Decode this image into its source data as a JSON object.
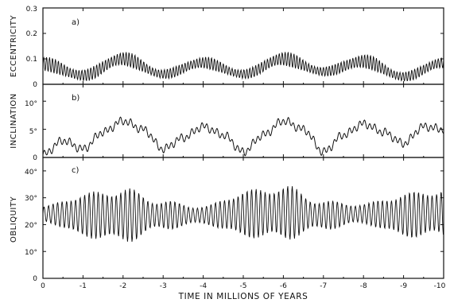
{
  "xlabel": "TIME IN MILLIONS OF YEARS",
  "x_ticks": [
    "0",
    "-1",
    "-2",
    "-3",
    "-4",
    "-5",
    "-6",
    "-7",
    "-8",
    "-9",
    "-10"
  ],
  "chart_data": [
    {
      "type": "line",
      "panel_label": "a)",
      "ylabel": "ECCENTRICITY",
      "y_ticks": [
        "0",
        "0.1",
        "0.2",
        "0.3"
      ],
      "xlim": [
        0,
        -10
      ],
      "ylim": [
        0,
        0.3
      ],
      "line_color": "#111111",
      "envelope_min": [
        {
          "x": 0,
          "y": 0.05
        },
        {
          "x": -1,
          "y": 0.01
        },
        {
          "x": -2,
          "y": 0.07
        },
        {
          "x": -3,
          "y": 0.02
        },
        {
          "x": -4,
          "y": 0.06
        },
        {
          "x": -5,
          "y": 0.02
        },
        {
          "x": -6,
          "y": 0.07
        },
        {
          "x": -7,
          "y": 0.03
        },
        {
          "x": -8,
          "y": 0.06
        },
        {
          "x": -9,
          "y": 0.01
        },
        {
          "x": -10,
          "y": 0.06
        }
      ],
      "envelope_max": [
        {
          "x": 0,
          "y": 0.11
        },
        {
          "x": -1,
          "y": 0.06
        },
        {
          "x": -2,
          "y": 0.13
        },
        {
          "x": -3,
          "y": 0.06
        },
        {
          "x": -4,
          "y": 0.11
        },
        {
          "x": -5,
          "y": 0.06
        },
        {
          "x": -6,
          "y": 0.13
        },
        {
          "x": -7,
          "y": 0.07
        },
        {
          "x": -8,
          "y": 0.12
        },
        {
          "x": -9,
          "y": 0.05
        },
        {
          "x": -10,
          "y": 0.11
        }
      ]
    },
    {
      "type": "line",
      "panel_label": "b)",
      "ylabel": "INCLINATION",
      "y_ticks": [
        "0",
        "5°",
        "10°"
      ],
      "xlim": [
        0,
        -10
      ],
      "ylim": [
        0,
        13
      ],
      "line_color": "#111111",
      "points": [
        {
          "x": 0,
          "y": 0.5
        },
        {
          "x": -0.5,
          "y": 3.0
        },
        {
          "x": -1,
          "y": 1.5
        },
        {
          "x": -1.5,
          "y": 4.5
        },
        {
          "x": -2,
          "y": 6.5
        },
        {
          "x": -2.5,
          "y": 5.0
        },
        {
          "x": -3,
          "y": 1.5
        },
        {
          "x": -3.5,
          "y": 3.5
        },
        {
          "x": -4,
          "y": 5.5
        },
        {
          "x": -4.5,
          "y": 4.0
        },
        {
          "x": -5,
          "y": 1.0
        },
        {
          "x": -5.5,
          "y": 4.0
        },
        {
          "x": -6,
          "y": 6.5
        },
        {
          "x": -6.5,
          "y": 5.0
        },
        {
          "x": -7,
          "y": 1.0
        },
        {
          "x": -7.5,
          "y": 4.0
        },
        {
          "x": -8,
          "y": 6.0
        },
        {
          "x": -8.5,
          "y": 4.5
        },
        {
          "x": -9,
          "y": 2.5
        },
        {
          "x": -9.5,
          "y": 5.5
        },
        {
          "x": -10,
          "y": 5.0
        }
      ]
    },
    {
      "type": "line",
      "panel_label": "c)",
      "ylabel": "OBLIQUITY",
      "y_ticks": [
        "0",
        "10°",
        "20°",
        "30°",
        "40°"
      ],
      "xlim": [
        0,
        -10
      ],
      "ylim": [
        0,
        45
      ],
      "line_color": "#111111",
      "envelope_min": [
        {
          "x": 0,
          "y": 21
        },
        {
          "x": -1,
          "y": 15
        },
        {
          "x": -2,
          "y": 13
        },
        {
          "x": -3,
          "y": 18
        },
        {
          "x": -4,
          "y": 20
        },
        {
          "x": -5,
          "y": 15
        },
        {
          "x": -6,
          "y": 14
        },
        {
          "x": -7,
          "y": 18
        },
        {
          "x": -8,
          "y": 20
        },
        {
          "x": -9,
          "y": 15
        },
        {
          "x": -10,
          "y": 15
        }
      ],
      "envelope_max": [
        {
          "x": 0,
          "y": 27
        },
        {
          "x": -1,
          "y": 32
        },
        {
          "x": -2,
          "y": 34
        },
        {
          "x": -3,
          "y": 29
        },
        {
          "x": -4,
          "y": 27
        },
        {
          "x": -5,
          "y": 33
        },
        {
          "x": -6,
          "y": 35
        },
        {
          "x": -7,
          "y": 29
        },
        {
          "x": -8,
          "y": 28
        },
        {
          "x": -9,
          "y": 32
        },
        {
          "x": -10,
          "y": 34
        }
      ]
    }
  ]
}
